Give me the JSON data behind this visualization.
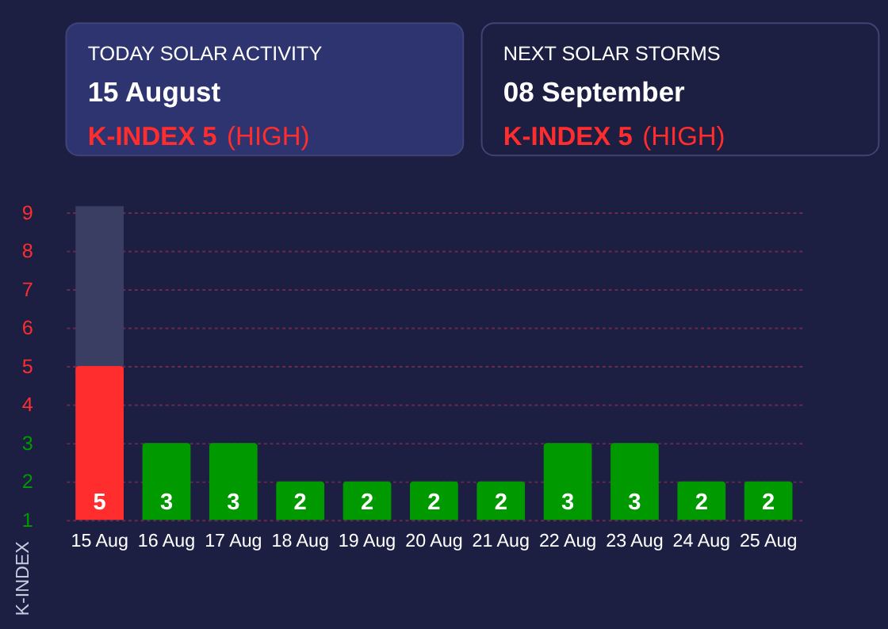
{
  "chart_data": {
    "type": "bar",
    "categories": [
      "15 Aug",
      "16 Aug",
      "17 Aug",
      "18 Aug",
      "19 Aug",
      "20 Aug",
      "21 Aug",
      "22 Aug",
      "23 Aug",
      "24 Aug",
      "25 Aug"
    ],
    "values": [
      5,
      3,
      3,
      2,
      2,
      2,
      2,
      3,
      3,
      2,
      2
    ],
    "colors": [
      "#ff2d2d",
      "#009900",
      "#009900",
      "#009900",
      "#009900",
      "#009900",
      "#009900",
      "#009900",
      "#009900",
      "#009900",
      "#009900"
    ],
    "data_labels": true,
    "ylabel": "K-INDEX",
    "ylim": [
      1,
      9
    ],
    "yticks": [
      1,
      2,
      3,
      4,
      5,
      6,
      7,
      8,
      9
    ],
    "grid": "y",
    "bands": [
      {
        "axis": "x",
        "from": "15 Aug",
        "to": "15 Aug",
        "color": "#3a3e63"
      }
    ],
    "annotations": [
      "TODAY SOLAR ACTIVITY",
      "15 August",
      "K-INDEX 5",
      "(HIGH)",
      "NEXT SOLAR STORMS",
      "08 September",
      "K-INDEX 5",
      "(HIGH)"
    ]
  }
}
